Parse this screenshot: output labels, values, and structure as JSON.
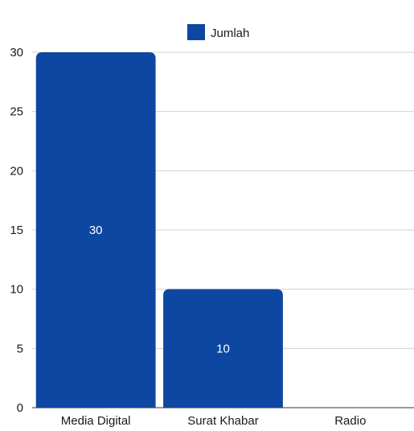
{
  "chart_data": {
    "type": "bar",
    "categories": [
      "Media Digital",
      "Surat Khabar",
      "Radio"
    ],
    "series": [
      {
        "name": "Jumlah",
        "values": [
          30,
          10,
          0
        ]
      }
    ],
    "data_labels": [
      "30",
      "10",
      ""
    ],
    "yticks": [
      "0",
      "5",
      "10",
      "15",
      "20",
      "25",
      "30"
    ],
    "ylim": [
      0,
      30
    ],
    "ystep": 5,
    "grid": true,
    "legend_position": "top-center",
    "bar_color": "#0d47a1"
  }
}
